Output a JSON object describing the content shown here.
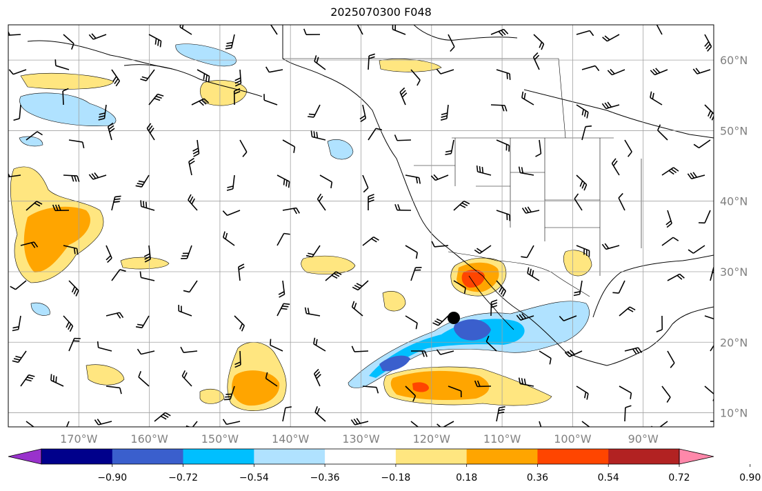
{
  "title": "2025070300 F048",
  "map": {
    "lon_range": [
      180,
      80
    ],
    "lat_range": [
      8,
      65
    ],
    "lon_ticks": [
      "170°W",
      "160°W",
      "150°W",
      "140°W",
      "130°W",
      "120°W",
      "110°W",
      "100°W",
      "90°W"
    ],
    "lat_ticks": [
      "10°N",
      "20°N",
      "30°N",
      "40°N",
      "50°N",
      "60°N"
    ],
    "gridlines": true,
    "marker": "black-dot",
    "tick_label_color": "#808080"
  },
  "colorbar": {
    "labels": [
      "−0.90",
      "−0.72",
      "−0.54",
      "−0.36",
      "−0.18",
      "0.18",
      "0.36",
      "0.54",
      "0.72",
      "0.90"
    ],
    "colors": [
      "#9932CC",
      "#00008B",
      "#3A5FCD",
      "#00BFFF",
      "#B0E2FF",
      "#FFFFFF",
      "#FFE680",
      "#FFA500",
      "#FF4500",
      "#B22222",
      "#FF88AA"
    ],
    "extend": "both"
  }
}
